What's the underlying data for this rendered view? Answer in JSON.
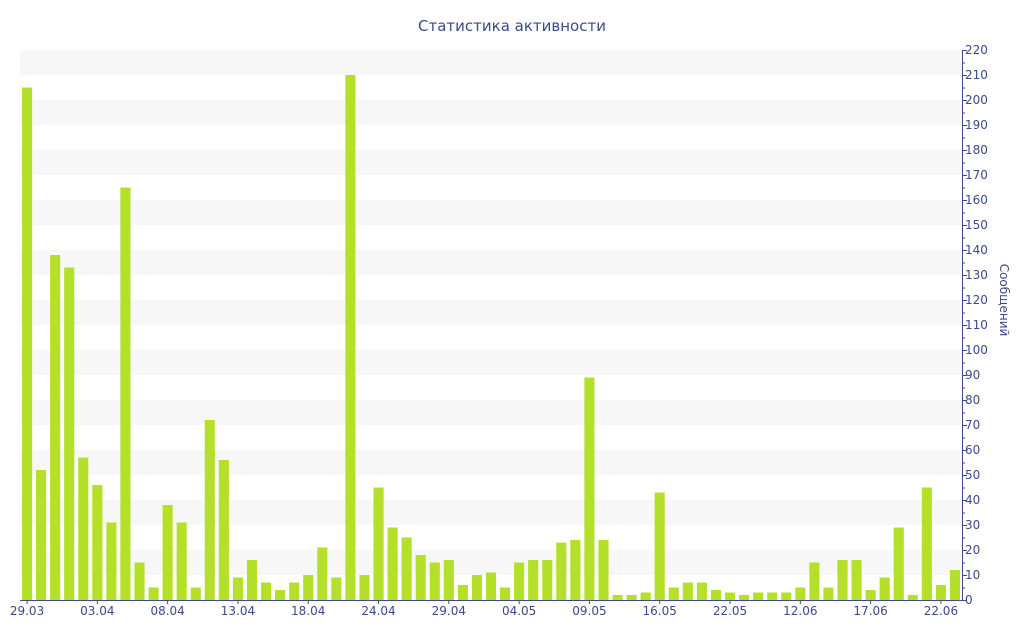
{
  "chart_data": {
    "type": "bar",
    "title": "Статистика активности",
    "xlabel": "",
    "ylabel": "Сообщений",
    "ylim": [
      0,
      220
    ],
    "ytick_step": 10,
    "y_axis_side": "right",
    "grid": "horizontal-bands",
    "colors": {
      "bar": "#b5e02a",
      "axis": "#3a4a8a",
      "band": "#f7f7f7"
    },
    "x_tick_labels": [
      "29.03",
      "03.04",
      "08.04",
      "13.04",
      "18.04",
      "24.04",
      "29.04",
      "04.05",
      "09.05",
      "16.05",
      "22.05",
      "12.06",
      "17.06",
      "22.06"
    ],
    "x_tick_indices": [
      0,
      5,
      10,
      15,
      20,
      25,
      30,
      35,
      40,
      45,
      50,
      55,
      60,
      65
    ],
    "values": [
      205,
      52,
      138,
      133,
      57,
      46,
      31,
      165,
      15,
      5,
      38,
      31,
      5,
      72,
      56,
      9,
      16,
      7,
      4,
      7,
      10,
      21,
      9,
      210,
      10,
      45,
      29,
      25,
      18,
      15,
      16,
      6,
      10,
      11,
      5,
      15,
      16,
      16,
      23,
      24,
      89,
      24,
      2,
      2,
      3,
      43,
      5,
      7,
      7,
      4,
      3,
      2,
      3,
      3,
      3,
      5,
      15,
      5,
      16,
      16,
      4,
      9,
      29,
      2,
      45,
      6,
      12
    ]
  }
}
